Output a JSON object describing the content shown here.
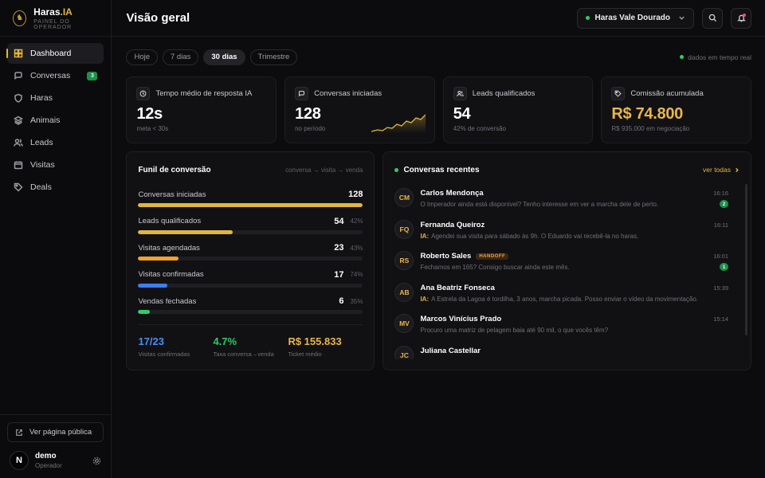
{
  "brand": {
    "name": "Haras",
    "name_suffix": ".IA",
    "subtitle": "PAINEL DO OPERADOR"
  },
  "sidebar": {
    "items": [
      {
        "label": "Dashboard",
        "icon": "grid-icon",
        "active": true
      },
      {
        "label": "Conversas",
        "icon": "chat-icon",
        "badge": "3"
      },
      {
        "label": "Haras",
        "icon": "shield-icon"
      },
      {
        "label": "Animais",
        "icon": "layers-icon"
      },
      {
        "label": "Leads",
        "icon": "users-icon"
      },
      {
        "label": "Visitas",
        "icon": "calendar-icon"
      },
      {
        "label": "Deals",
        "icon": "tag-icon"
      }
    ],
    "public_page": "Ver página pública",
    "user": {
      "initial": "N",
      "name": "demo",
      "role": "Operador"
    }
  },
  "header": {
    "title": "Visão geral",
    "haras_selected": "Haras Vale Dourado"
  },
  "filters": {
    "options": [
      "Hoje",
      "7 dias",
      "30 dias",
      "Trimestre"
    ],
    "selected": "30 dias",
    "live_label": "dados em tempo real"
  },
  "kpis": [
    {
      "label": "Tempo médio de resposta IA",
      "value": "12s",
      "sub": "meta < 30s",
      "icon": "clock-icon"
    },
    {
      "label": "Conversas iniciadas",
      "value": "128",
      "sub": "no período",
      "icon": "chat-icon"
    },
    {
      "label": "Leads qualificados",
      "value": "54",
      "sub": "42% de conversão",
      "icon": "users-icon"
    },
    {
      "label": "Comissão acumulada",
      "value": "R$ 74.800",
      "sub": "R$ 935.000 em negociação",
      "icon": "tag-icon"
    }
  ],
  "funnel": {
    "title": "Funil de conversão",
    "hint": "conversa → visita → venda",
    "stages": [
      {
        "label": "Conversas iniciadas",
        "value": "128",
        "pct": "",
        "fill": 1.0,
        "color": "#e2b53f"
      },
      {
        "label": "Leads qualificados",
        "value": "54",
        "pct": "42%",
        "fill": 0.42,
        "color": "#e2b53f"
      },
      {
        "label": "Visitas agendadas",
        "value": "23",
        "pct": "43%",
        "fill": 0.18,
        "color": "#f0a22e"
      },
      {
        "label": "Visitas confirmadas",
        "value": "17",
        "pct": "74%",
        "fill": 0.13,
        "color": "#3b7ff0"
      },
      {
        "label": "Vendas fechadas",
        "value": "6",
        "pct": "35%",
        "fill": 0.05,
        "color": "#2fcb6a"
      }
    ],
    "stats": [
      {
        "value": "17/23",
        "label": "Visitas confirmadas",
        "color": "#4a8df5"
      },
      {
        "value": "4.7%",
        "label": "Taxa conversa→venda",
        "color": "#2fcb6a"
      },
      {
        "value": "R$ 155.833",
        "label": "Ticket médio",
        "color": "#e8b64a"
      }
    ]
  },
  "conversations": {
    "title": "Conversas recentes",
    "see_all": "ver todas",
    "items": [
      {
        "initials": "CM",
        "name": "Carlos Mendonça",
        "message": "O Imperador ainda está disponível? Tenho interesse em ver a marcha dele de perto.",
        "ia": false,
        "time": "16:16",
        "unread": "2",
        "handoff": ""
      },
      {
        "initials": "FQ",
        "name": "Fernanda Queiroz",
        "message": "Agendei sua visita para sábado às 9h. O Eduardo vai recebê-la no haras.",
        "ia": true,
        "time": "16:11",
        "unread": "",
        "handoff": ""
      },
      {
        "initials": "RS",
        "name": "Roberto Sales",
        "message": "Fechamos em 165? Consigo buscar ainda este mês.",
        "ia": false,
        "time": "16:01",
        "unread": "1",
        "handoff": "HANDOFF"
      },
      {
        "initials": "AB",
        "name": "Ana Beatriz Fonseca",
        "message": "A Estrela da Lagoa é tordilha, 3 anos, marcha picada. Posso enviar o vídeo da movimentação.",
        "ia": true,
        "time": "15:39",
        "unread": "",
        "handoff": ""
      },
      {
        "initials": "MV",
        "name": "Marcos Vinícius Prado",
        "message": "Procuro uma matriz de pelagem baia até 90 mil, o que vocês têm?",
        "ia": false,
        "time": "15:14",
        "unread": "",
        "handoff": ""
      },
      {
        "initials": "JC",
        "name": "Juliana Castellar",
        "message": "",
        "ia": false,
        "time": "",
        "unread": "",
        "handoff": ""
      }
    ],
    "ia_prefix": "IA:"
  },
  "colors": {
    "accent": "#e2b53f",
    "green": "#2fcb6a",
    "blue": "#3b7ff0",
    "orange": "#f0a22e"
  }
}
